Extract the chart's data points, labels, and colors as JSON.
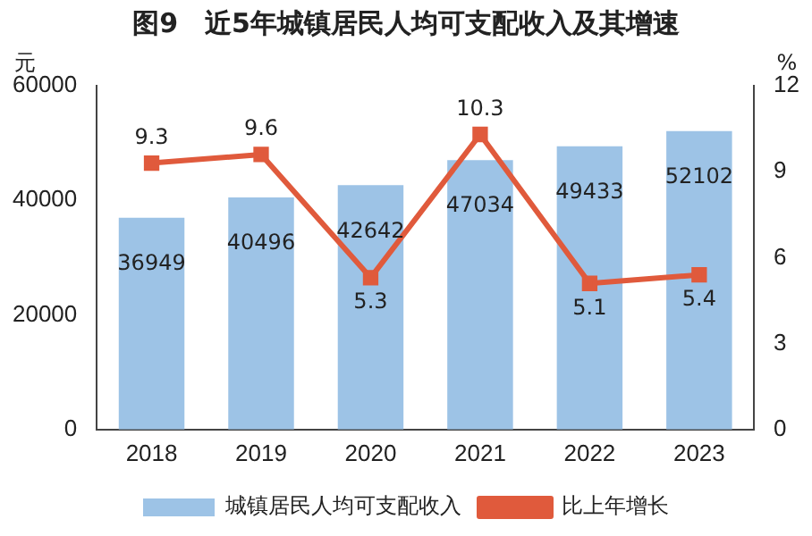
{
  "chart_data": {
    "type": "bar",
    "title": "图9　近5年城镇居民人均可支配收入及其增速",
    "ylabel": "元",
    "y2label": "%",
    "categories": [
      "2018",
      "2019",
      "2020",
      "2021",
      "2022",
      "2023"
    ],
    "series": [
      {
        "name": "城镇居民人均可支配收入",
        "color": "#9dc3e6",
        "values": [
          36949,
          40496,
          42642,
          47034,
          49433,
          52102
        ]
      },
      {
        "name": "比上年增长",
        "type": "line",
        "axis": "y2",
        "color": "#e05a3c",
        "values": [
          9.3,
          9.6,
          5.3,
          10.3,
          5.1,
          5.4
        ]
      }
    ],
    "ylim": [
      0,
      60000
    ],
    "yticks": [
      0,
      20000,
      40000,
      60000
    ],
    "y2lim": [
      0,
      12
    ],
    "y2ticks": [
      0,
      3,
      6,
      9,
      12
    ],
    "data_labels": true,
    "legend": "bottom",
    "grid": false,
    "marker": "square",
    "line_style": "solid"
  }
}
